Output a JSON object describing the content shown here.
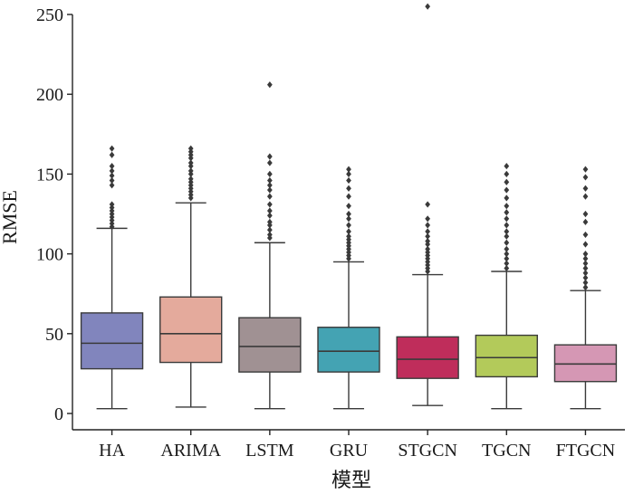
{
  "chart_data": {
    "type": "box",
    "title": "",
    "xlabel": "模型",
    "ylabel": "RMSE",
    "ylim": [
      0,
      250
    ],
    "yticks": [
      0,
      50,
      100,
      150,
      200,
      250
    ],
    "categories": [
      "HA",
      "ARIMA",
      "LSTM",
      "GRU",
      "STGCN",
      "TGCN",
      "FTGCN"
    ],
    "colors": [
      "#8185bd",
      "#e4aa9c",
      "#a09193",
      "#44a3b3",
      "#bf2d5b",
      "#b3ca5a",
      "#d597b4"
    ],
    "series": [
      {
        "name": "HA",
        "whisker_low": 3,
        "q1": 28,
        "median": 44,
        "q3": 63,
        "whisker_high": 116,
        "outliers": [
          117,
          119,
          121,
          123,
          125,
          127,
          129,
          131,
          143,
          146,
          149,
          152,
          155,
          162,
          166
        ]
      },
      {
        "name": "ARIMA",
        "whisker_low": 4,
        "q1": 32,
        "median": 50,
        "q3": 73,
        "whisker_high": 132,
        "outliers": [
          135,
          137,
          139,
          141,
          143,
          145,
          147,
          150,
          152,
          155,
          157,
          160,
          162,
          164,
          166
        ]
      },
      {
        "name": "LSTM",
        "whisker_low": 3,
        "q1": 26,
        "median": 42,
        "q3": 60,
        "whisker_high": 107,
        "outliers": [
          110,
          112,
          115,
          118,
          120,
          124,
          127,
          131,
          136,
          140,
          143,
          146,
          150,
          157,
          161,
          206
        ]
      },
      {
        "name": "GRU",
        "whisker_low": 3,
        "q1": 26,
        "median": 39,
        "q3": 54,
        "whisker_high": 95,
        "outliers": [
          97,
          99,
          101,
          103,
          105,
          107,
          109,
          111,
          114,
          118,
          122,
          125,
          130,
          136,
          141,
          146,
          150,
          153
        ]
      },
      {
        "name": "STGCN",
        "whisker_low": 5,
        "q1": 22,
        "median": 34,
        "q3": 48,
        "whisker_high": 87,
        "outliers": [
          89,
          91,
          93,
          95,
          97,
          99,
          101,
          103,
          106,
          108,
          111,
          114,
          118,
          122,
          131,
          255
        ]
      },
      {
        "name": "TGCN",
        "whisker_low": 3,
        "q1": 23,
        "median": 35,
        "q3": 49,
        "whisker_high": 89,
        "outliers": [
          91,
          94,
          97,
          100,
          103,
          107,
          111,
          114,
          118,
          122,
          126,
          130,
          135,
          140,
          145,
          150,
          155
        ]
      },
      {
        "name": "FTGCN",
        "whisker_low": 3,
        "q1": 20,
        "median": 31,
        "q3": 43,
        "whisker_high": 77,
        "outliers": [
          79,
          82,
          85,
          88,
          91,
          94,
          97,
          100,
          106,
          112,
          120,
          125,
          136,
          141,
          148,
          153
        ]
      }
    ]
  }
}
